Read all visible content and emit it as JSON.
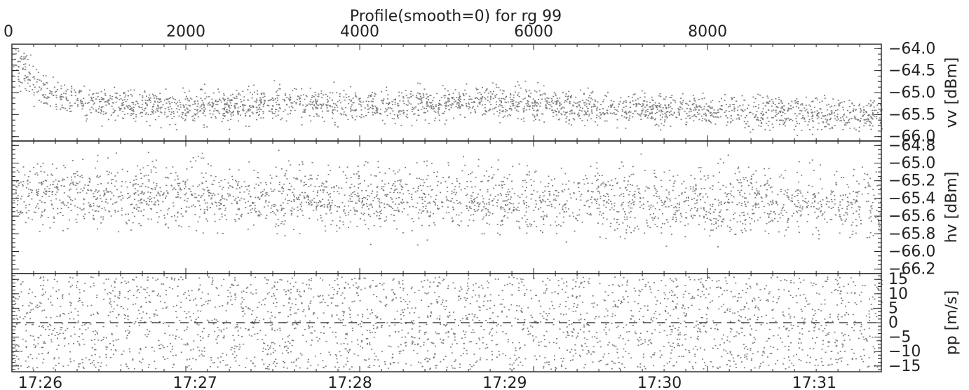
{
  "chart_data": {
    "type": "scatter",
    "title": "Profile(smooth=0) for rg 99",
    "top_axis": {
      "range": [
        0,
        9999
      ],
      "ticks": [
        {
          "value": 0,
          "label": "0"
        },
        {
          "value": 2000,
          "label": "2000"
        },
        {
          "value": 4000,
          "label": "4000"
        },
        {
          "value": 6000,
          "label": "6000"
        },
        {
          "value": 8000,
          "label": "8000"
        }
      ]
    },
    "bottom_axis": {
      "range": [
        "17:25:49",
        "17:31:26"
      ],
      "ticks": [
        {
          "time": "17:26:00",
          "label": "17:26"
        },
        {
          "time": "17:27:00",
          "label": "17:27"
        },
        {
          "time": "17:28:00",
          "label": "17:28"
        },
        {
          "time": "17:29:00",
          "label": "17:29"
        },
        {
          "time": "17:30:00",
          "label": "17:30"
        },
        {
          "time": "17:31:00",
          "label": "17:31"
        }
      ]
    },
    "panels": [
      {
        "ylabel": "vv [dBm]",
        "ylim": [
          -66.1,
          -63.9
        ],
        "yticks": [
          {
            "value": -64.0,
            "label": "−64.0"
          },
          {
            "value": -64.5,
            "label": "−64.5"
          },
          {
            "value": -65.0,
            "label": "−65.0"
          },
          {
            "value": -65.5,
            "label": "−65.5"
          },
          {
            "value": -66.0,
            "label": "−66.0"
          }
        ],
        "trend": [
          [
            0,
            -64.3
          ],
          [
            200,
            -64.6
          ],
          [
            400,
            -65.05
          ],
          [
            800,
            -65.2
          ],
          [
            1500,
            -65.3
          ],
          [
            2500,
            -65.3
          ],
          [
            3200,
            -65.2
          ],
          [
            4200,
            -65.3
          ],
          [
            5500,
            -65.2
          ],
          [
            6500,
            -65.3
          ],
          [
            8000,
            -65.4
          ],
          [
            9999,
            -65.5
          ]
        ],
        "spread": 0.18,
        "color": "#7a7a7a"
      },
      {
        "ylabel": "hv [dBm]",
        "ylim": [
          -66.25,
          -64.75
        ],
        "yticks": [
          {
            "value": -64.8,
            "label": "−64.8"
          },
          {
            "value": -65.0,
            "label": "−65.0"
          },
          {
            "value": -65.2,
            "label": "−65.2"
          },
          {
            "value": -65.4,
            "label": "−65.4"
          },
          {
            "value": -65.6,
            "label": "−65.6"
          },
          {
            "value": -65.8,
            "label": "−65.8"
          },
          {
            "value": -66.0,
            "label": "−66.0"
          },
          {
            "value": -66.2,
            "label": "−66.2"
          }
        ],
        "trend": [
          [
            0,
            -65.35
          ],
          [
            5000,
            -65.4
          ],
          [
            9999,
            -65.45
          ]
        ],
        "spread": 0.18,
        "color": "#7a7a7a"
      },
      {
        "ylabel": "pp [m/s]",
        "ylim": [
          -17,
          17
        ],
        "yticks": [
          {
            "value": 15,
            "label": "15"
          },
          {
            "value": 10,
            "label": "10"
          },
          {
            "value": 5,
            "label": "5"
          },
          {
            "value": 0,
            "label": "0"
          },
          {
            "value": -5,
            "label": "−5"
          },
          {
            "value": -10,
            "label": "−10"
          },
          {
            "value": -15,
            "label": "−15"
          }
        ],
        "uniform_range": [
          -16,
          16
        ],
        "reference_line": 0,
        "color": "#7a7a7a"
      }
    ],
    "points_per_panel": 2600,
    "grid": false,
    "legend": "none"
  }
}
